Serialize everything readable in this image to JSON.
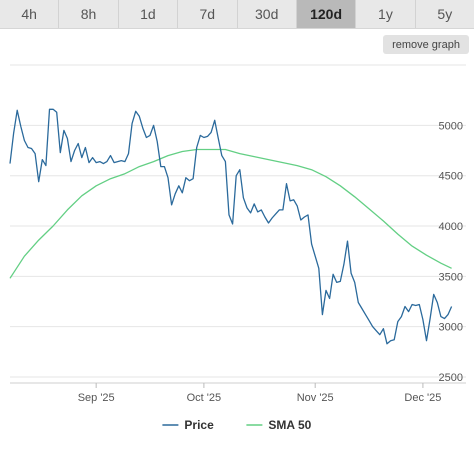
{
  "range_buttons": [
    "4h",
    "8h",
    "1d",
    "7d",
    "30d",
    "120d",
    "1y",
    "5y"
  ],
  "active_range": "120d",
  "remove_graph_label": "remove graph",
  "colors": {
    "price": "#2b6a9c",
    "sma": "#63cf84",
    "grid": "#e6e6e6",
    "axis_text": "#555555",
    "active_button": "#b9b9b9"
  },
  "chart_data": {
    "type": "line",
    "title": "",
    "xlabel": "",
    "ylabel": "",
    "ylim": [
      2440,
      5600
    ],
    "yticks": [
      2500,
      3000,
      3500,
      4000,
      4500,
      5000
    ],
    "xlim": [
      "2025-08-08",
      "2025-12-13"
    ],
    "xticks": [
      {
        "label": "Sep '25",
        "date": "2025-09-01"
      },
      {
        "label": "Oct '25",
        "date": "2025-10-01"
      },
      {
        "label": "Nov '25",
        "date": "2025-11-01"
      },
      {
        "label": "Dec '25",
        "date": "2025-12-01"
      }
    ],
    "grid": true,
    "legend": "bottom-center",
    "series": [
      {
        "name": "Price",
        "color": "#2b6a9c",
        "points": [
          [
            "2025-08-08",
            4620
          ],
          [
            "2025-08-09",
            4920
          ],
          [
            "2025-08-10",
            5150
          ],
          [
            "2025-08-11",
            4990
          ],
          [
            "2025-08-12",
            4850
          ],
          [
            "2025-08-13",
            4780
          ],
          [
            "2025-08-14",
            4770
          ],
          [
            "2025-08-15",
            4720
          ],
          [
            "2025-08-16",
            4440
          ],
          [
            "2025-08-17",
            4660
          ],
          [
            "2025-08-18",
            4600
          ],
          [
            "2025-08-19",
            5160
          ],
          [
            "2025-08-20",
            5160
          ],
          [
            "2025-08-21",
            5130
          ],
          [
            "2025-08-22",
            4730
          ],
          [
            "2025-08-23",
            4950
          ],
          [
            "2025-08-24",
            4870
          ],
          [
            "2025-08-25",
            4640
          ],
          [
            "2025-08-26",
            4750
          ],
          [
            "2025-08-27",
            4820
          ],
          [
            "2025-08-28",
            4680
          ],
          [
            "2025-08-29",
            4780
          ],
          [
            "2025-08-30",
            4630
          ],
          [
            "2025-08-31",
            4680
          ],
          [
            "2025-09-01",
            4630
          ],
          [
            "2025-09-02",
            4640
          ],
          [
            "2025-09-03",
            4620
          ],
          [
            "2025-09-04",
            4640
          ],
          [
            "2025-09-05",
            4700
          ],
          [
            "2025-09-06",
            4630
          ],
          [
            "2025-09-07",
            4640
          ],
          [
            "2025-09-08",
            4650
          ],
          [
            "2025-09-09",
            4640
          ],
          [
            "2025-09-10",
            4720
          ],
          [
            "2025-09-11",
            5020
          ],
          [
            "2025-09-12",
            5140
          ],
          [
            "2025-09-13",
            5090
          ],
          [
            "2025-09-14",
            4970
          ],
          [
            "2025-09-15",
            4880
          ],
          [
            "2025-09-16",
            4900
          ],
          [
            "2025-09-17",
            5000
          ],
          [
            "2025-09-18",
            4840
          ],
          [
            "2025-09-19",
            4590
          ],
          [
            "2025-09-20",
            4590
          ],
          [
            "2025-09-21",
            4480
          ],
          [
            "2025-09-22",
            4210
          ],
          [
            "2025-09-23",
            4320
          ],
          [
            "2025-09-24",
            4400
          ],
          [
            "2025-09-25",
            4330
          ],
          [
            "2025-09-26",
            4480
          ],
          [
            "2025-09-27",
            4450
          ],
          [
            "2025-09-28",
            4470
          ],
          [
            "2025-09-29",
            4780
          ],
          [
            "2025-09-30",
            4900
          ],
          [
            "2025-10-01",
            4880
          ],
          [
            "2025-10-02",
            4890
          ],
          [
            "2025-10-03",
            4930
          ],
          [
            "2025-10-04",
            5050
          ],
          [
            "2025-10-05",
            4870
          ],
          [
            "2025-10-06",
            4700
          ],
          [
            "2025-10-07",
            4640
          ],
          [
            "2025-10-08",
            4110
          ],
          [
            "2025-10-09",
            4020
          ],
          [
            "2025-10-10",
            4500
          ],
          [
            "2025-10-11",
            4560
          ],
          [
            "2025-10-12",
            4280
          ],
          [
            "2025-10-13",
            4180
          ],
          [
            "2025-10-14",
            4130
          ],
          [
            "2025-10-15",
            4220
          ],
          [
            "2025-10-16",
            4140
          ],
          [
            "2025-10-17",
            4160
          ],
          [
            "2025-10-18",
            4090
          ],
          [
            "2025-10-19",
            4030
          ],
          [
            "2025-10-20",
            4080
          ],
          [
            "2025-10-21",
            4120
          ],
          [
            "2025-10-22",
            4160
          ],
          [
            "2025-10-23",
            4160
          ],
          [
            "2025-10-24",
            4420
          ],
          [
            "2025-10-25",
            4250
          ],
          [
            "2025-10-26",
            4260
          ],
          [
            "2025-10-27",
            4200
          ],
          [
            "2025-10-28",
            4060
          ],
          [
            "2025-10-29",
            4090
          ],
          [
            "2025-10-30",
            4110
          ],
          [
            "2025-10-31",
            3820
          ],
          [
            "2025-11-01",
            3700
          ],
          [
            "2025-11-02",
            3580
          ],
          [
            "2025-11-03",
            3120
          ],
          [
            "2025-11-04",
            3360
          ],
          [
            "2025-11-05",
            3280
          ],
          [
            "2025-11-06",
            3520
          ],
          [
            "2025-11-07",
            3440
          ],
          [
            "2025-11-08",
            3450
          ],
          [
            "2025-11-09",
            3620
          ],
          [
            "2025-11-10",
            3850
          ],
          [
            "2025-11-11",
            3530
          ],
          [
            "2025-11-12",
            3440
          ],
          [
            "2025-11-13",
            3240
          ],
          [
            "2025-11-14",
            3180
          ],
          [
            "2025-11-15",
            3120
          ],
          [
            "2025-11-16",
            3060
          ],
          [
            "2025-11-17",
            3000
          ],
          [
            "2025-11-18",
            2960
          ],
          [
            "2025-11-19",
            2920
          ],
          [
            "2025-11-20",
            2980
          ],
          [
            "2025-11-21",
            2830
          ],
          [
            "2025-11-22",
            2860
          ],
          [
            "2025-11-23",
            2870
          ],
          [
            "2025-11-24",
            3050
          ],
          [
            "2025-11-25",
            3100
          ],
          [
            "2025-11-26",
            3200
          ],
          [
            "2025-11-27",
            3150
          ],
          [
            "2025-11-28",
            3220
          ],
          [
            "2025-11-29",
            3210
          ],
          [
            "2025-11-30",
            3220
          ],
          [
            "2025-12-01",
            3070
          ],
          [
            "2025-12-02",
            2860
          ],
          [
            "2025-12-03",
            3080
          ],
          [
            "2025-12-04",
            3320
          ],
          [
            "2025-12-05",
            3240
          ],
          [
            "2025-12-06",
            3100
          ],
          [
            "2025-12-07",
            3080
          ],
          [
            "2025-12-08",
            3120
          ],
          [
            "2025-12-09",
            3200
          ]
        ]
      },
      {
        "name": "SMA 50",
        "color": "#63cf84",
        "points": [
          [
            "2025-08-08",
            3480
          ],
          [
            "2025-08-12",
            3700
          ],
          [
            "2025-08-16",
            3860
          ],
          [
            "2025-08-20",
            4000
          ],
          [
            "2025-08-24",
            4160
          ],
          [
            "2025-08-28",
            4300
          ],
          [
            "2025-09-01",
            4400
          ],
          [
            "2025-09-05",
            4470
          ],
          [
            "2025-09-09",
            4520
          ],
          [
            "2025-09-13",
            4590
          ],
          [
            "2025-09-17",
            4640
          ],
          [
            "2025-09-21",
            4700
          ],
          [
            "2025-09-25",
            4740
          ],
          [
            "2025-09-29",
            4760
          ],
          [
            "2025-10-03",
            4760
          ],
          [
            "2025-10-07",
            4760
          ],
          [
            "2025-10-11",
            4720
          ],
          [
            "2025-10-15",
            4690
          ],
          [
            "2025-10-19",
            4660
          ],
          [
            "2025-10-23",
            4630
          ],
          [
            "2025-10-27",
            4600
          ],
          [
            "2025-10-31",
            4560
          ],
          [
            "2025-11-04",
            4490
          ],
          [
            "2025-11-08",
            4400
          ],
          [
            "2025-11-12",
            4290
          ],
          [
            "2025-11-16",
            4170
          ],
          [
            "2025-11-20",
            4050
          ],
          [
            "2025-11-24",
            3920
          ],
          [
            "2025-11-28",
            3800
          ],
          [
            "2025-12-02",
            3710
          ],
          [
            "2025-12-06",
            3630
          ],
          [
            "2025-12-09",
            3580
          ]
        ]
      }
    ]
  }
}
